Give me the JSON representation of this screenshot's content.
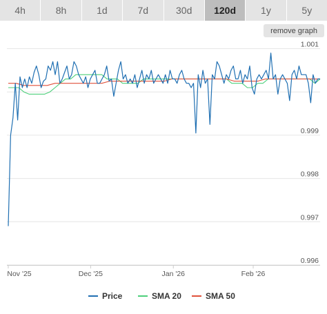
{
  "range_tabs": [
    {
      "label": "4h",
      "active": false
    },
    {
      "label": "8h",
      "active": false
    },
    {
      "label": "1d",
      "active": false
    },
    {
      "label": "7d",
      "active": false
    },
    {
      "label": "30d",
      "active": false
    },
    {
      "label": "120d",
      "active": true
    },
    {
      "label": "1y",
      "active": false
    },
    {
      "label": "5y",
      "active": false
    }
  ],
  "remove_graph_label": "remove graph",
  "chart_data": {
    "type": "line",
    "x_ticks": [
      "Nov '25",
      "Dec '25",
      "Jan '26",
      "Feb '26"
    ],
    "y_ticks": [
      "0.996",
      "0.997",
      "0.998",
      "0.999",
      "1.001"
    ],
    "ylim": [
      0.996,
      1.0012
    ],
    "grid": "horizontal",
    "legend_position": "bottom",
    "series": [
      {
        "name": "Price",
        "color": "#1f6fb2",
        "values": [
          0.9969,
          0.999,
          0.9994,
          1.0002,
          0.99935,
          1.00035,
          1.0001,
          1.0003,
          1.0001,
          1.00035,
          1.0002,
          1.00045,
          1.0006,
          1.0004,
          1.0001,
          1.00025,
          1.0003,
          1.0006,
          1.0005,
          1.0007,
          1.0004,
          1.0007,
          1.0002,
          1.0003,
          1.00045,
          1.0006,
          1.0003,
          1.0004,
          1.0007,
          1.0006,
          1.0004,
          1.0003,
          1.0002,
          1.00035,
          1.0001,
          1.0003,
          1.0004,
          1.0005,
          1.0002,
          1.0002,
          1.0003,
          1.0004,
          1.0006,
          1.00025,
          1.0003,
          0.9999,
          1.0002,
          1.0005,
          1.0007,
          1.0003,
          1.0004,
          1.0002,
          1.0003,
          1.0002,
          1.0004,
          1.0001,
          1.0003,
          1.0005,
          1.0002,
          1.0004,
          1.0003,
          1.0005,
          1.0002,
          1.0003,
          1.0004,
          1.0003,
          1.0002,
          1.0004,
          1.0002,
          1.0005,
          1.0003,
          1.0003,
          1.0002,
          1.0004,
          1.0005,
          1.0003,
          1.0002,
          1.0002,
          1.0001,
          1.0002,
          0.99905,
          1.0004,
          1.0001,
          1.0005,
          1.0002,
          1.0003,
          0.99925,
          1.0004,
          1.0003,
          1.0007,
          1.0006,
          1.0004,
          1.0002,
          1.0004,
          1.0003,
          1.0005,
          1.0006,
          1.0003,
          1.0003,
          1.0005,
          1.0002,
          1.0004,
          1.0003,
          1.0006,
          1.0001,
          0.99995,
          1.0003,
          1.0004,
          1.0003,
          1.0004,
          1.0005,
          1.0003,
          1.0009,
          1.0003,
          1.0004,
          0.99995,
          1.0003,
          1.0004,
          1.0003,
          1.0002,
          0.9998,
          1.0004,
          1.0005,
          1.0003,
          1.0006,
          1.0004,
          1.0004,
          1.0004,
          1.0002,
          0.99975,
          1.0004,
          1.0002,
          1.0003,
          1.0003
        ]
      },
      {
        "name": "SMA 20",
        "color": "#4ccf7a",
        "values": [
          1.0001,
          1.0001,
          1.0001,
          1.0,
          0.99995,
          0.99995,
          0.99995,
          0.99995,
          1.0,
          1.0001,
          1.0002,
          1.0003,
          1.0003,
          1.0004,
          1.0004,
          1.0004,
          1.0004,
          1.0004,
          1.0004,
          1.0003,
          1.0003,
          1.0003,
          1.0002,
          1.0002,
          1.0002,
          1.0002,
          1.0003,
          1.0003,
          1.0003,
          1.0003,
          1.0003,
          1.0003,
          1.0003,
          1.0003,
          1.0003,
          1.0003,
          1.0003,
          1.0003,
          1.0003,
          1.0003,
          1.0003,
          1.0003,
          1.0003,
          1.0002,
          1.0002,
          1.0002,
          1.0001,
          1.0001,
          1.0002,
          1.0002,
          1.0003,
          1.0003,
          1.0003,
          1.0003,
          1.0003,
          1.0003,
          1.0003,
          1.0003,
          1.0003,
          1.0002,
          1.0003
        ]
      },
      {
        "name": "SMA 50",
        "color": "#e0503a",
        "values": [
          1.0002,
          1.0002,
          1.00015,
          1.00015,
          1.00015,
          1.00015,
          1.0002,
          1.0002,
          1.0002,
          1.0002,
          1.0002,
          1.0002,
          1.0002,
          1.00025,
          1.00025,
          1.00025,
          1.00025,
          1.00025,
          1.00025,
          1.00025,
          1.00025,
          1.0003,
          1.0003,
          1.0003,
          1.0003,
          1.0003,
          1.0003,
          1.0003,
          1.0003,
          1.00025,
          1.00025,
          1.00025,
          1.00025,
          1.0003,
          1.0003,
          1.0003,
          1.0003,
          1.0003,
          1.0003,
          1.0003,
          1.0003
        ]
      }
    ]
  }
}
